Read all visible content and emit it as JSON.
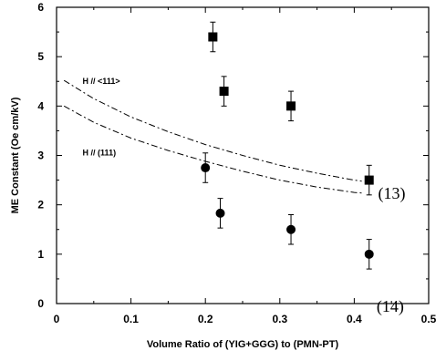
{
  "chart_data": {
    "type": "scatter",
    "title": "",
    "xlabel": "Volume Ratio of (YIG+GGG) to (PMN-PT)",
    "ylabel": "ME Constant (Oe cm/kV)",
    "xlim": [
      0,
      0.5
    ],
    "ylim": [
      0,
      6
    ],
    "x_ticks": [
      0,
      0.1,
      0.2,
      0.3,
      0.4,
      0.5
    ],
    "x_tick_labels": [
      "0",
      "0.1",
      "0.2",
      "0.3",
      "0.4",
      "0.5"
    ],
    "y_ticks": [
      0,
      1,
      2,
      3,
      4,
      5,
      6
    ],
    "y_tick_labels": [
      "0",
      "1",
      "2",
      "3",
      "4",
      "5",
      "6"
    ],
    "grid": false,
    "series": [
      {
        "marker": "square",
        "points": [
          {
            "x": 0.21,
            "y": 5.4,
            "err": 0.3
          },
          {
            "x": 0.225,
            "y": 4.3,
            "err": 0.3
          },
          {
            "x": 0.315,
            "y": 4.0,
            "err": 0.3
          },
          {
            "x": 0.42,
            "y": 2.5,
            "err": 0.3
          }
        ]
      },
      {
        "marker": "circle",
        "points": [
          {
            "x": 0.2,
            "y": 2.75,
            "err": 0.3
          },
          {
            "x": 0.22,
            "y": 1.83,
            "err": 0.3
          },
          {
            "x": 0.315,
            "y": 1.5,
            "err": 0.3
          },
          {
            "x": 0.42,
            "y": 1.0,
            "err": 0.3
          }
        ]
      }
    ],
    "curves": [
      {
        "style": "dash-dot",
        "label": "H // <111>",
        "x": [
          0.01,
          0.05,
          0.1,
          0.15,
          0.2,
          0.25,
          0.3,
          0.35,
          0.4,
          0.41
        ],
        "y": [
          4.52,
          4.15,
          3.78,
          3.48,
          3.22,
          3.0,
          2.8,
          2.64,
          2.5,
          2.48
        ]
      },
      {
        "style": "dash-dot",
        "label": "H // (111)",
        "x": [
          0.01,
          0.05,
          0.1,
          0.15,
          0.2,
          0.25,
          0.3,
          0.35,
          0.4,
          0.41
        ],
        "y": [
          4.0,
          3.67,
          3.35,
          3.1,
          2.88,
          2.68,
          2.5,
          2.36,
          2.25,
          2.24
        ]
      }
    ],
    "annotations": [
      {
        "text": "H // <111>",
        "x": 0.035,
        "y": 4.45,
        "style": "small"
      },
      {
        "text": "H // (111)",
        "x": 0.035,
        "y": 3.0,
        "style": "small"
      },
      {
        "text": "(13)",
        "x": 0.432,
        "y": 2.12,
        "style": "ref"
      },
      {
        "text": "(14)",
        "x": 0.43,
        "y": -0.17,
        "style": "ref"
      }
    ]
  }
}
